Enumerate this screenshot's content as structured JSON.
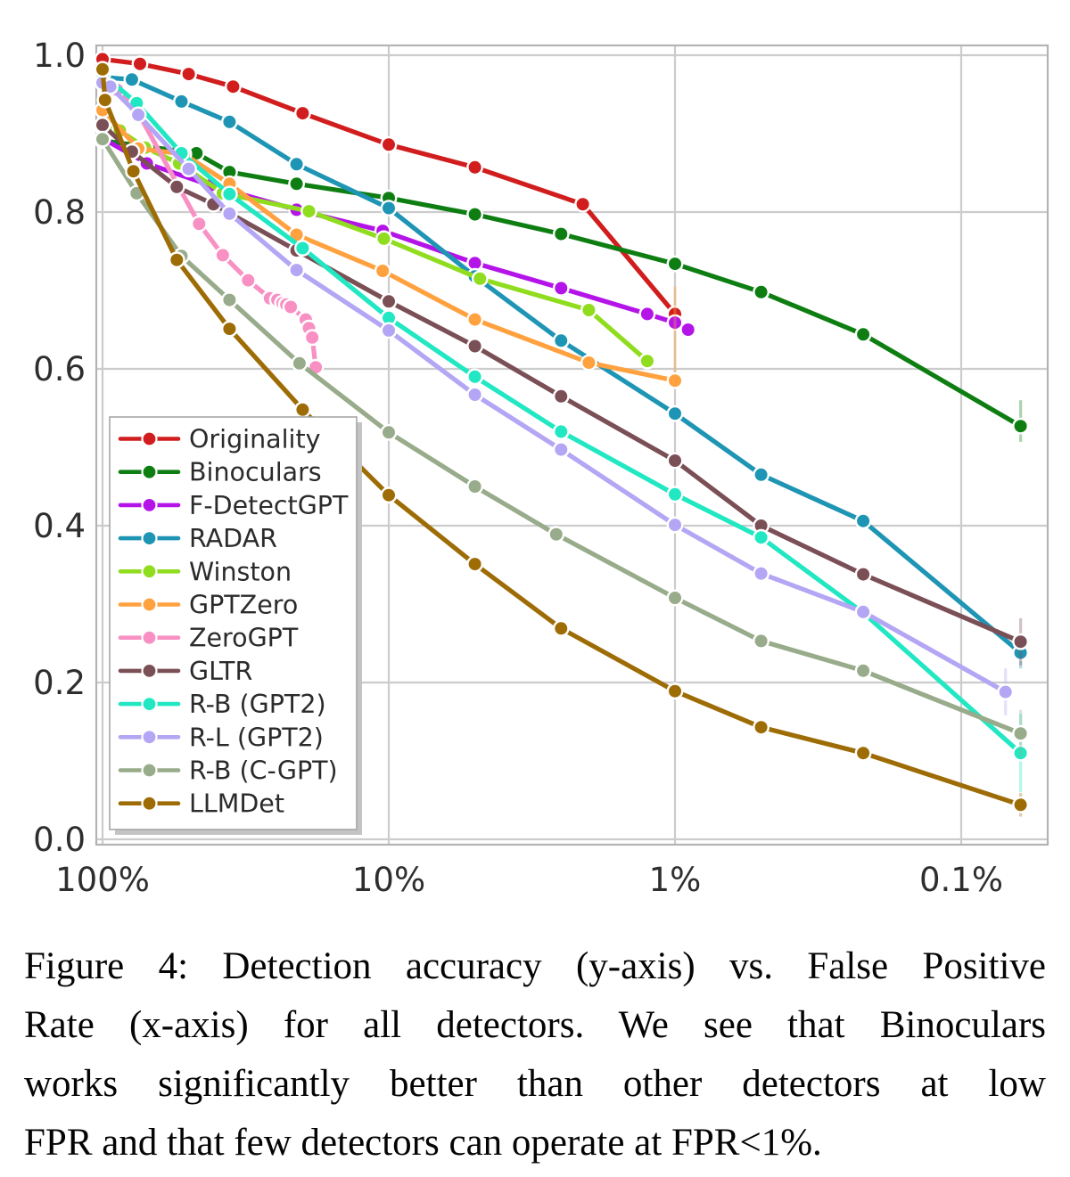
{
  "figure": {
    "caption": {
      "lines": [
        "Figure 4: Detection accuracy (y-axis) vs. False Positive",
        "Rate (x-axis) for all detectors. We see that Binoculars",
        "works significantly better than other detectors at low",
        "FPR and that few detectors can operate at FPR<1%."
      ],
      "full_text": "Figure 4: Detection accuracy (y-axis) vs. False Positive Rate (x-axis) for all detectors. We see that Binoculars works significantly better than other detectors at low FPR and that few detectors can operate at FPR<1%."
    }
  },
  "chart_data": {
    "type": "line",
    "title": "",
    "xlabel": "",
    "ylabel": "",
    "x_axis": {
      "scale": "log-reversed",
      "tick_labels": [
        "100%",
        "10%",
        "1%",
        "0.1%"
      ],
      "tick_values": [
        100,
        10,
        1,
        0.1
      ],
      "range_percent": [
        105,
        0.055
      ]
    },
    "y_axis": {
      "tick_labels": [
        "1.0",
        "0.8",
        "0.6",
        "0.4",
        "0.2",
        "0.0"
      ],
      "tick_values": [
        1.0,
        0.8,
        0.6,
        0.4,
        0.2,
        0.0
      ],
      "range": [
        0.0,
        1.0
      ]
    },
    "grid": true,
    "legend_position": "lower-left",
    "colors": {
      "grid": "#cccccc",
      "spine": "#b3b3b3",
      "tick_label": "#2e2e2e",
      "legend_border": "#a6a6a6",
      "legend_shadow": "#c4c4c4",
      "legend_text": "#2b2b2b",
      "marker_edge": "#ffffff"
    },
    "series": [
      {
        "name": "Originality",
        "color": "#d11d1d",
        "points": [
          [
            100,
            0.995
          ],
          [
            74,
            0.989
          ],
          [
            50,
            0.976
          ],
          [
            35,
            0.96
          ],
          [
            20,
            0.926
          ],
          [
            10,
            0.886
          ],
          [
            5,
            0.857
          ],
          [
            2.1,
            0.81
          ],
          [
            1.0,
            0.67
          ]
        ]
      },
      {
        "name": "Binoculars",
        "color": "#0e7e12",
        "points": [
          [
            100,
            0.891
          ],
          [
            47,
            0.875
          ],
          [
            36,
            0.851
          ],
          [
            21,
            0.836
          ],
          [
            10,
            0.818
          ],
          [
            5,
            0.797
          ],
          [
            2.5,
            0.772
          ],
          [
            1.0,
            0.734
          ],
          [
            0.5,
            0.698
          ],
          [
            0.22,
            0.644
          ],
          [
            0.062,
            0.527
          ]
        ],
        "yerr_last": [
          0.02,
          0.033
        ]
      },
      {
        "name": "F-DetectGPT",
        "color": "#b414e8",
        "points": [
          [
            100,
            0.894
          ],
          [
            70,
            0.862
          ],
          [
            42,
            0.834
          ],
          [
            21,
            0.803
          ],
          [
            10.5,
            0.776
          ],
          [
            5,
            0.735
          ],
          [
            2.5,
            0.703
          ],
          [
            1.25,
            0.67
          ],
          [
            1.0,
            0.659
          ],
          [
            0.9,
            0.65
          ]
        ]
      },
      {
        "name": "RADAR",
        "color": "#1e95b4",
        "points": [
          [
            100,
            0.972
          ],
          [
            79,
            0.969
          ],
          [
            53,
            0.941
          ],
          [
            36,
            0.915
          ],
          [
            21,
            0.861
          ],
          [
            10,
            0.805
          ],
          [
            5,
            0.718
          ],
          [
            2.5,
            0.636
          ],
          [
            1.0,
            0.543
          ],
          [
            0.5,
            0.465
          ],
          [
            0.22,
            0.406
          ],
          [
            0.062,
            0.238
          ]
        ],
        "yerr_last": [
          0.02,
          0.02
        ]
      },
      {
        "name": "Winston",
        "color": "#90dc1f",
        "points": [
          [
            100,
            0.908
          ],
          [
            87,
            0.904
          ],
          [
            71,
            0.882
          ],
          [
            54,
            0.862
          ],
          [
            38,
            0.824
          ],
          [
            19,
            0.801
          ],
          [
            10.4,
            0.766
          ],
          [
            4.8,
            0.715
          ],
          [
            2.0,
            0.675
          ],
          [
            1.25,
            0.61
          ]
        ]
      },
      {
        "name": "GPTZero",
        "color": "#ffa13f",
        "points": [
          [
            100,
            0.93
          ],
          [
            75,
            0.881
          ],
          [
            52,
            0.874
          ],
          [
            36,
            0.836
          ],
          [
            21,
            0.771
          ],
          [
            10.5,
            0.725
          ],
          [
            5,
            0.663
          ],
          [
            2.0,
            0.608
          ],
          [
            1.0,
            0.585
          ]
        ],
        "yerr_last": [
          0.0,
          0.12
        ]
      },
      {
        "name": "ZeroGPT",
        "color": "#f890c4",
        "points": [
          [
            100,
            0.965
          ],
          [
            89,
            0.956
          ],
          [
            76,
            0.93
          ],
          [
            46,
            0.785
          ],
          [
            38,
            0.745
          ],
          [
            31,
            0.713
          ],
          [
            26,
            0.69
          ],
          [
            24.5,
            0.688
          ],
          [
            23.5,
            0.684
          ],
          [
            22.8,
            0.682
          ],
          [
            22,
            0.679
          ],
          [
            19.5,
            0.663
          ],
          [
            19,
            0.652
          ],
          [
            18.5,
            0.64
          ],
          [
            18,
            0.602
          ]
        ]
      },
      {
        "name": "GLTR",
        "color": "#7a4f56",
        "points": [
          [
            100,
            0.911
          ],
          [
            79,
            0.877
          ],
          [
            55,
            0.832
          ],
          [
            41,
            0.81
          ],
          [
            21,
            0.751
          ],
          [
            10,
            0.686
          ],
          [
            5,
            0.629
          ],
          [
            2.5,
            0.565
          ],
          [
            1.0,
            0.483
          ],
          [
            0.5,
            0.4
          ],
          [
            0.22,
            0.338
          ],
          [
            0.062,
            0.252
          ]
        ],
        "yerr_last": [
          0.03,
          0.03
        ]
      },
      {
        "name": "R-B (GPT2)",
        "color": "#22e7c3",
        "points": [
          [
            100,
            0.976
          ],
          [
            76,
            0.939
          ],
          [
            53,
            0.875
          ],
          [
            36,
            0.823
          ],
          [
            20,
            0.754
          ],
          [
            10,
            0.665
          ],
          [
            5,
            0.59
          ],
          [
            2.5,
            0.52
          ],
          [
            1.0,
            0.44
          ],
          [
            0.5,
            0.385
          ],
          [
            0.22,
            0.289
          ],
          [
            0.062,
            0.11
          ]
        ],
        "yerr_last": [
          0.05,
          0.05
        ]
      },
      {
        "name": "R-L (GPT2)",
        "color": "#b4a6f4",
        "points": [
          [
            100,
            0.965
          ],
          [
            94,
            0.96
          ],
          [
            75,
            0.924
          ],
          [
            50,
            0.855
          ],
          [
            36,
            0.798
          ],
          [
            21,
            0.726
          ],
          [
            10,
            0.649
          ],
          [
            5,
            0.567
          ],
          [
            2.5,
            0.497
          ],
          [
            1.0,
            0.401
          ],
          [
            0.5,
            0.339
          ],
          [
            0.22,
            0.29
          ],
          [
            0.07,
            0.188
          ]
        ],
        "yerr_last": [
          0.03,
          0.03
        ]
      },
      {
        "name": "R-B (C-GPT)",
        "color": "#98ab8a",
        "points": [
          [
            100,
            0.893
          ],
          [
            76,
            0.824
          ],
          [
            53,
            0.744
          ],
          [
            36,
            0.688
          ],
          [
            20.5,
            0.607
          ],
          [
            10,
            0.519
          ],
          [
            5,
            0.45
          ],
          [
            2.6,
            0.389
          ],
          [
            1.0,
            0.308
          ],
          [
            0.5,
            0.253
          ],
          [
            0.22,
            0.215
          ],
          [
            0.062,
            0.135
          ]
        ],
        "yerr_last": [
          0.03,
          0.03
        ]
      },
      {
        "name": "LLMDet",
        "color": "#9e6c05",
        "points": [
          [
            100,
            0.982
          ],
          [
            98,
            0.943
          ],
          [
            78,
            0.852
          ],
          [
            55,
            0.739
          ],
          [
            36,
            0.651
          ],
          [
            20,
            0.548
          ],
          [
            10,
            0.439
          ],
          [
            5,
            0.351
          ],
          [
            2.5,
            0.269
          ],
          [
            1.0,
            0.189
          ],
          [
            0.5,
            0.143
          ],
          [
            0.22,
            0.11
          ],
          [
            0.062,
            0.044
          ]
        ],
        "yerr_last": [
          0.015,
          0.015
        ]
      }
    ]
  }
}
